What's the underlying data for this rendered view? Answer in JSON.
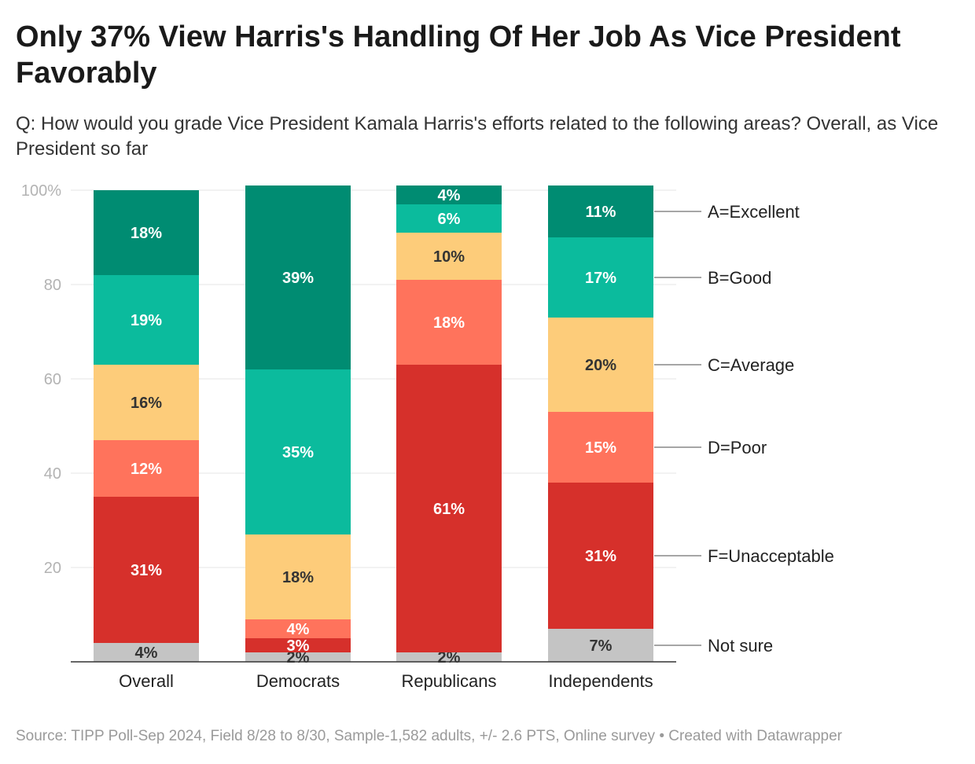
{
  "title": "Only 37% View Harris's Handling Of Her Job As Vice President Favorably",
  "subtitle": "Q: How would you grade Vice President Kamala Harris's efforts related to the following areas? Overall, as Vice President so far",
  "footer": {
    "source": "Source: TIPP Poll-Sep 2024, Field 8/28 to 8/30, Sample-1,582 adults, +/- 2.6 PTS, Online survey",
    "separator": "•",
    "credit": "Created with Datawrapper"
  },
  "chart_data": {
    "type": "bar",
    "stacked": true,
    "orientation": "vertical",
    "categories": [
      "Overall",
      "Democrats",
      "Republicans",
      "Independents"
    ],
    "series": [
      {
        "name": "Not sure",
        "color": "#c4c4c4",
        "labelColor": "#333333",
        "values": [
          4,
          2,
          2,
          7
        ]
      },
      {
        "name": "F=Unacceptable",
        "color": "#d6302b",
        "labelColor": "#ffffff",
        "values": [
          31,
          3,
          61,
          31
        ]
      },
      {
        "name": "D=Poor",
        "color": "#ff735c",
        "labelColor": "#ffffff",
        "values": [
          12,
          4,
          18,
          15
        ]
      },
      {
        "name": "C=Average",
        "color": "#fdcc7a",
        "labelColor": "#333333",
        "values": [
          16,
          18,
          10,
          20
        ]
      },
      {
        "name": "B=Good",
        "color": "#0bbb9d",
        "labelColor": "#ffffff",
        "values": [
          19,
          35,
          6,
          17
        ]
      },
      {
        "name": "A=Excellent",
        "color": "#008c72",
        "labelColor": "#ffffff",
        "values": [
          18,
          39,
          4,
          11
        ]
      }
    ],
    "ylim": [
      0,
      100
    ],
    "yticks": [
      {
        "value": 20,
        "label": "20"
      },
      {
        "value": 40,
        "label": "40"
      },
      {
        "value": 60,
        "label": "60"
      },
      {
        "value": 80,
        "label": "80"
      },
      {
        "value": 100,
        "label": "100%"
      }
    ],
    "legend_placement": "right, aligned with Independents segments",
    "grid": true
  }
}
